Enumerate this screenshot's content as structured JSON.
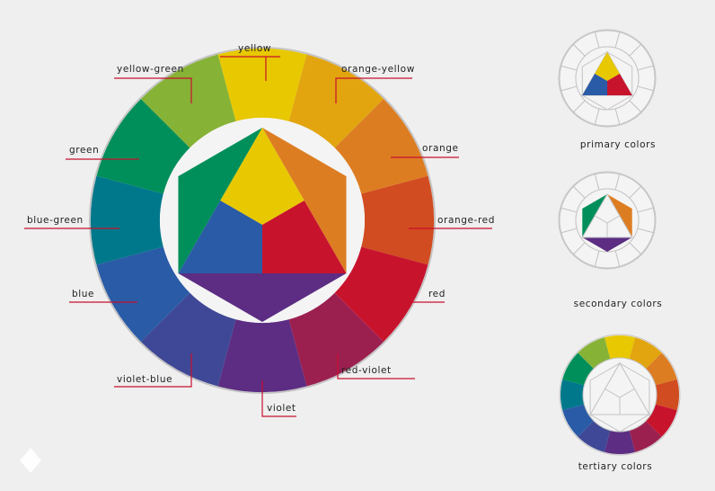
{
  "wheel": {
    "segments": [
      "yellow",
      "orange-yellow",
      "orange",
      "orange-red",
      "red",
      "red-violet",
      "violet",
      "violet-blue",
      "blue",
      "blue-green",
      "green",
      "yellow-green"
    ]
  },
  "small_wheels": [
    "primary colors",
    "secondary colors",
    "tertiary colors"
  ]
}
